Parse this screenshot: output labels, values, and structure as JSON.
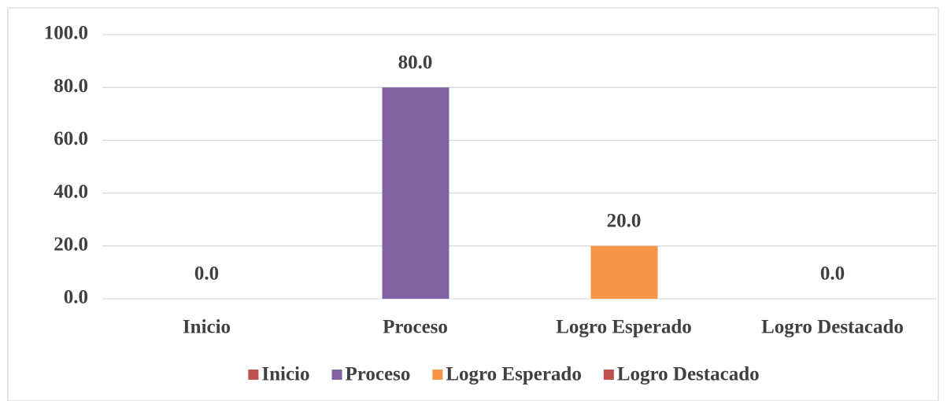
{
  "chart_data": {
    "type": "bar",
    "categories": [
      "Inicio",
      "Proceso",
      "Logro Esperado",
      "Logro Destacado"
    ],
    "values": [
      0,
      80,
      20,
      0
    ],
    "value_labels": [
      "0.0",
      "80.0",
      "20.0",
      "0.0"
    ],
    "colors": [
      "#c0504d",
      "#8064a2",
      "#f79646",
      "#c0504d"
    ],
    "ylim": [
      0,
      100
    ],
    "yticks": [
      {
        "value": 0,
        "label": "0.0"
      },
      {
        "value": 20,
        "label": "20.0"
      },
      {
        "value": 40,
        "label": "40.0"
      },
      {
        "value": 60,
        "label": "60.0"
      },
      {
        "value": 80,
        "label": "80.0"
      },
      {
        "value": 100,
        "label": "100.0"
      }
    ],
    "grid": true,
    "legend": "bottom"
  }
}
